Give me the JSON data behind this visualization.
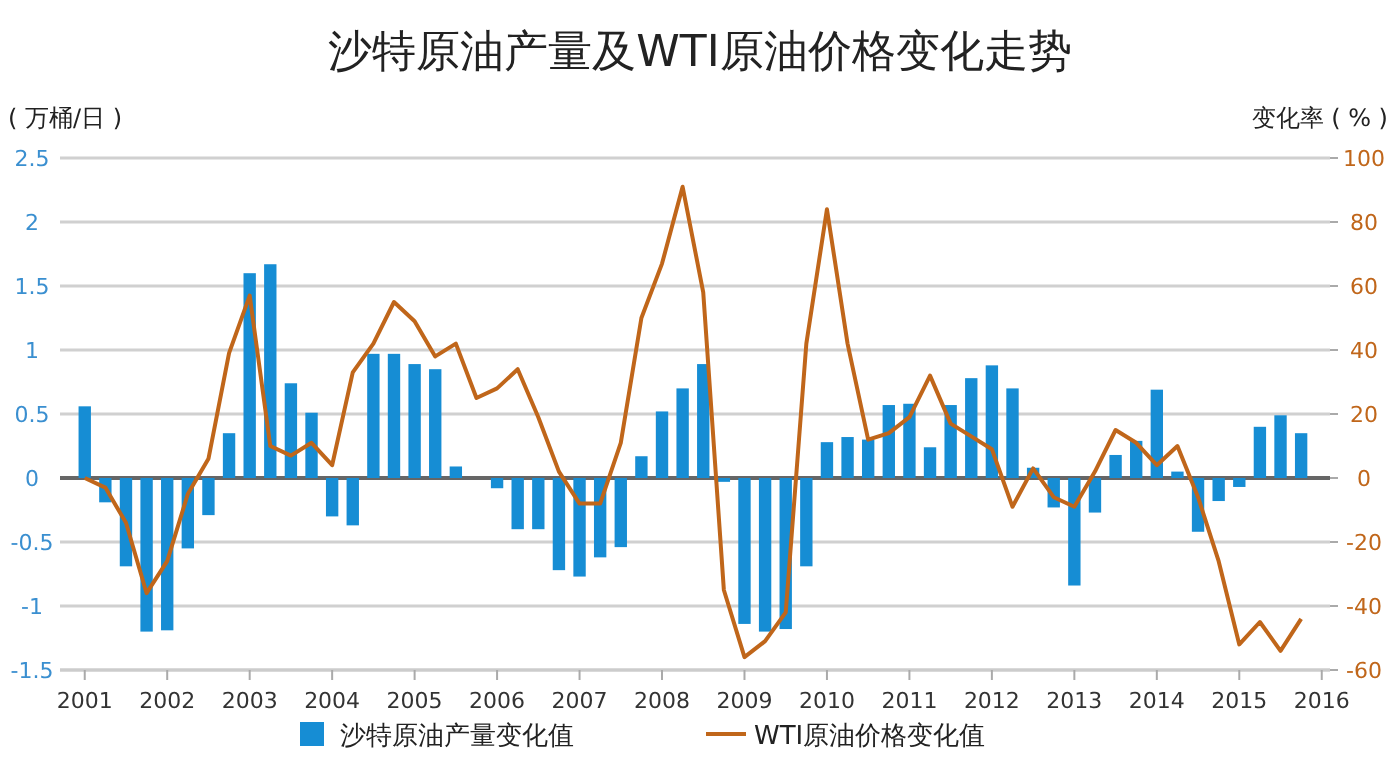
{
  "chart_data": {
    "type": "bar",
    "title": "沙特原油产量及WTI原油价格变化走势",
    "ylabel": "( 万桶/日 )",
    "y2label": "变化率 ( % )",
    "x": [
      2001,
      2001.25,
      2001.5,
      2001.75,
      2002,
      2002.25,
      2002.5,
      2002.75,
      2003,
      2003.25,
      2003.5,
      2003.75,
      2004,
      2004.25,
      2004.5,
      2004.75,
      2005,
      2005.25,
      2005.5,
      2005.75,
      2006,
      2006.25,
      2006.5,
      2006.75,
      2007,
      2007.25,
      2007.5,
      2007.75,
      2008,
      2008.25,
      2008.5,
      2008.75,
      2009,
      2009.25,
      2009.5,
      2009.75,
      2010,
      2010.25,
      2010.5,
      2010.75,
      2011,
      2011.25,
      2011.5,
      2011.75,
      2012,
      2012.25,
      2012.5,
      2012.75,
      2013,
      2013.25,
      2013.5,
      2013.75,
      2014,
      2014.25,
      2014.5,
      2014.75,
      2015,
      2015.25,
      2015.5,
      2015.75
    ],
    "xlim": [
      2000.7,
      2016.1
    ],
    "xticks": [
      2001,
      2002,
      2003,
      2004,
      2005,
      2006,
      2007,
      2008,
      2009,
      2010,
      2011,
      2012,
      2013,
      2014,
      2015,
      2016
    ],
    "ylim": [
      -1.5,
      2.5
    ],
    "yticks": [
      -1.5,
      -1,
      -0.5,
      0,
      0.5,
      1,
      1.5,
      2,
      2.5
    ],
    "y2lim": [
      -60,
      100
    ],
    "y2ticks": [
      -60,
      -40,
      -20,
      0,
      20,
      40,
      60,
      80,
      100
    ],
    "grid": "y",
    "legend": "bottom",
    "series": [
      {
        "name": "沙特原油产量变化值",
        "color": "#168dd4",
        "values": [
          0.56,
          -0.19,
          -0.69,
          -1.2,
          -1.19,
          -0.55,
          -0.29,
          0.35,
          1.6,
          1.67,
          0.74,
          0.51,
          -0.3,
          -0.37,
          0.97,
          0.97,
          0.89,
          0.85,
          0.09,
          null,
          -0.08,
          -0.4,
          -0.4,
          -0.72,
          -0.77,
          -0.62,
          -0.54,
          0.17,
          0.52,
          0.7,
          0.89,
          -0.03,
          -1.14,
          -1.2,
          -1.18,
          -0.69,
          0.28,
          0.32,
          0.3,
          0.57,
          0.58,
          0.24,
          0.57,
          0.78,
          0.88,
          0.7,
          0.08,
          -0.23,
          -0.84,
          -0.27,
          0.18,
          0.29,
          0.69,
          0.05,
          -0.42,
          -0.18,
          -0.07,
          0.4,
          0.49,
          0.35
        ]
      },
      {
        "name": "WTI原油价格变化值",
        "type": "line",
        "axis": "y2",
        "color": "#c0661a",
        "values": [
          0,
          -3,
          -14,
          -36,
          -26,
          -5,
          6,
          39,
          57,
          10,
          7,
          11,
          4,
          33,
          42,
          55,
          49,
          38,
          42,
          25,
          28,
          34,
          19,
          2,
          -8,
          -8,
          11,
          50,
          67,
          91,
          58,
          -35,
          -56,
          -51,
          -42,
          42,
          84,
          42,
          12,
          14,
          19,
          32,
          17,
          13,
          9,
          -9,
          3,
          -6,
          -9,
          2,
          15,
          11,
          4,
          10,
          -6,
          -26,
          -52,
          -45,
          -54,
          -44
        ]
      }
    ]
  }
}
